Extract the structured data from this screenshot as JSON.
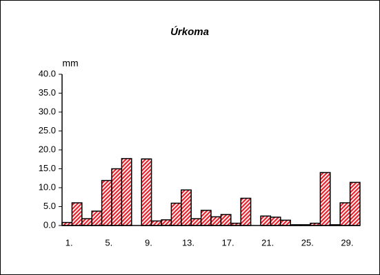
{
  "chart_data": {
    "type": "bar",
    "title": "Úrkoma",
    "y_label": "mm",
    "categories": [
      "1.",
      null,
      null,
      null,
      "5.",
      null,
      null,
      null,
      "9.",
      null,
      null,
      null,
      "13.",
      null,
      null,
      null,
      "17.",
      null,
      null,
      null,
      "21.",
      null,
      null,
      null,
      "25.",
      null,
      null,
      null,
      "29.",
      null
    ],
    "values": [
      0.8,
      6.0,
      1.8,
      3.8,
      11.9,
      15.0,
      17.7,
      0,
      17.6,
      1.2,
      1.5,
      5.9,
      9.4,
      1.8,
      4.0,
      2.3,
      2.9,
      0.6,
      7.2,
      0,
      2.5,
      2.2,
      1.4,
      0.2,
      0.2,
      0.6,
      14.0,
      0.2,
      6.0,
      11.4
    ],
    "color": "#e8202a",
    "ylim": [
      0,
      40
    ],
    "yticks": [
      {
        "value": 0,
        "label": "0.0"
      },
      {
        "value": 5,
        "label": "5.0"
      },
      {
        "value": 10,
        "label": "10.0"
      },
      {
        "value": 15,
        "label": "15.0"
      },
      {
        "value": 20,
        "label": "20.0"
      },
      {
        "value": 25,
        "label": "25.0"
      },
      {
        "value": 30,
        "label": "30.0"
      },
      {
        "value": 35,
        "label": "35.0"
      },
      {
        "value": 40,
        "label": "40.0"
      }
    ],
    "grid": false
  }
}
